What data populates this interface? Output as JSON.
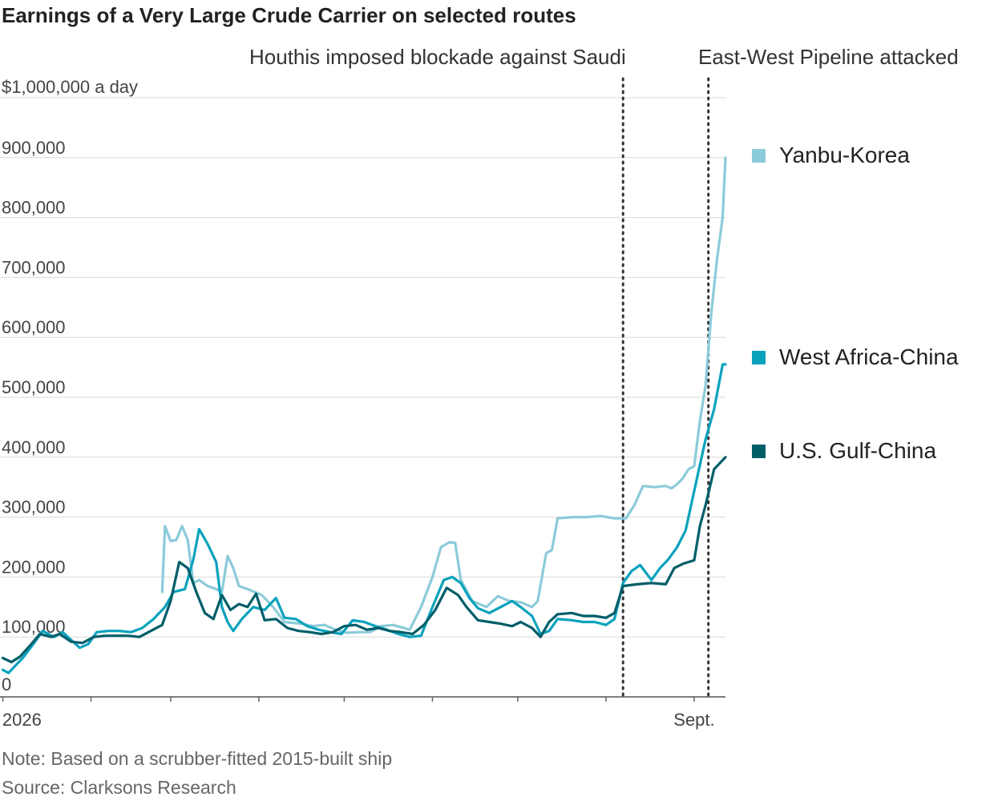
{
  "title": "Earnings of a Very Large Crude Carrier on selected routes",
  "note": "Note: Based on a scrubber-fitted 2015-built ship",
  "source": "Source: Clarksons Research",
  "annotations": [
    {
      "label": "Houthis imposed blockade against Saudi",
      "date": "2026-08-07"
    },
    {
      "label": "East-West Pipeline attacked",
      "date": "2026-09-06"
    }
  ],
  "chart_data": {
    "type": "line",
    "title": "Earnings of a Very Large Crude Carrier on selected routes",
    "ylabel": "$1,000,000 a day",
    "ylim": [
      0,
      1000000
    ],
    "xlim": [
      "2025-12-31",
      "2026-09-12"
    ],
    "y_ticks": [
      {
        "value": 0,
        "label": "0"
      },
      {
        "value": 100000,
        "label": "100,000"
      },
      {
        "value": 200000,
        "label": "200,000"
      },
      {
        "value": 300000,
        "label": "300,000"
      },
      {
        "value": 400000,
        "label": "400,000"
      },
      {
        "value": 500000,
        "label": "500,000"
      },
      {
        "value": 600000,
        "label": "600,000"
      },
      {
        "value": 700000,
        "label": "700,000"
      },
      {
        "value": 800000,
        "label": "800,000"
      },
      {
        "value": 900000,
        "label": "900,000"
      },
      {
        "value": 1000000,
        "label": "$1,000,000 a day"
      }
    ],
    "x_tick_labels": [
      {
        "date": "2026-01-01",
        "label": "Jan. 2026"
      },
      {
        "date": "2026-09-01",
        "label": "Sept."
      }
    ],
    "month_ticks": [
      "2026-02-01",
      "2026-03-01",
      "2026-04-01",
      "2026-05-01",
      "2026-06-01",
      "2026-07-01",
      "2026-08-01",
      "2026-09-01"
    ],
    "grid": true,
    "legend_position": "right",
    "series": [
      {
        "name": "Yanbu-Korea",
        "color": "#8ccbd9",
        "points": [
          [
            "2026-02-26",
            175000
          ],
          [
            "2026-02-27",
            285000
          ],
          [
            "2026-03-01",
            260000
          ],
          [
            "2026-03-03",
            262000
          ],
          [
            "2026-03-05",
            285000
          ],
          [
            "2026-03-07",
            262000
          ],
          [
            "2026-03-09",
            190000
          ],
          [
            "2026-03-11",
            195000
          ],
          [
            "2026-03-14",
            185000
          ],
          [
            "2026-03-17",
            180000
          ],
          [
            "2026-03-19",
            175000
          ],
          [
            "2026-03-21",
            235000
          ],
          [
            "2026-03-23",
            215000
          ],
          [
            "2026-03-25",
            185000
          ],
          [
            "2026-03-28",
            180000
          ],
          [
            "2026-04-02",
            170000
          ],
          [
            "2026-04-06",
            150000
          ],
          [
            "2026-04-10",
            125000
          ],
          [
            "2026-04-16",
            122000
          ],
          [
            "2026-04-20",
            118000
          ],
          [
            "2026-04-24",
            120000
          ],
          [
            "2026-04-28",
            112000
          ],
          [
            "2026-05-02",
            107000
          ],
          [
            "2026-05-06",
            108000
          ],
          [
            "2026-05-10",
            108000
          ],
          [
            "2026-05-14",
            118000
          ],
          [
            "2026-05-18",
            120000
          ],
          [
            "2026-05-22",
            115000
          ],
          [
            "2026-05-24",
            112000
          ],
          [
            "2026-05-28",
            150000
          ],
          [
            "2026-06-01",
            200000
          ],
          [
            "2026-06-04",
            250000
          ],
          [
            "2026-06-07",
            258000
          ],
          [
            "2026-06-09",
            257000
          ],
          [
            "2026-06-11",
            195000
          ],
          [
            "2026-06-15",
            160000
          ],
          [
            "2026-06-20",
            150000
          ],
          [
            "2026-06-24",
            168000
          ],
          [
            "2026-06-28",
            160000
          ],
          [
            "2026-07-02",
            158000
          ],
          [
            "2026-07-06",
            150000
          ],
          [
            "2026-07-08",
            160000
          ],
          [
            "2026-07-11",
            240000
          ],
          [
            "2026-07-13",
            245000
          ],
          [
            "2026-07-15",
            298000
          ],
          [
            "2026-07-20",
            300000
          ],
          [
            "2026-07-25",
            300000
          ],
          [
            "2026-07-30",
            302000
          ],
          [
            "2026-08-04",
            298000
          ],
          [
            "2026-08-08",
            298000
          ],
          [
            "2026-08-11",
            320000
          ],
          [
            "2026-08-14",
            352000
          ],
          [
            "2026-08-18",
            350000
          ],
          [
            "2026-08-22",
            352000
          ],
          [
            "2026-08-24",
            348000
          ],
          [
            "2026-08-26",
            355000
          ],
          [
            "2026-08-28",
            365000
          ],
          [
            "2026-08-30",
            380000
          ],
          [
            "2026-09-01",
            385000
          ],
          [
            "2026-09-03",
            460000
          ],
          [
            "2026-09-05",
            520000
          ],
          [
            "2026-09-07",
            640000
          ],
          [
            "2026-09-09",
            730000
          ],
          [
            "2026-09-11",
            800000
          ],
          [
            "2026-09-12",
            900000
          ]
        ]
      },
      {
        "name": "West Africa-China",
        "color": "#0aa2bd",
        "points": [
          [
            "2026-01-01",
            45000
          ],
          [
            "2026-01-03",
            40000
          ],
          [
            "2026-01-05",
            50000
          ],
          [
            "2026-01-08",
            65000
          ],
          [
            "2026-01-12",
            90000
          ],
          [
            "2026-01-15",
            110000
          ],
          [
            "2026-01-19",
            100000
          ],
          [
            "2026-01-22",
            108000
          ],
          [
            "2026-01-25",
            95000
          ],
          [
            "2026-01-28",
            82000
          ],
          [
            "2026-01-31",
            88000
          ],
          [
            "2026-02-03",
            108000
          ],
          [
            "2026-02-07",
            110000
          ],
          [
            "2026-02-11",
            110000
          ],
          [
            "2026-02-15",
            108000
          ],
          [
            "2026-02-19",
            115000
          ],
          [
            "2026-02-23",
            130000
          ],
          [
            "2026-02-27",
            150000
          ],
          [
            "2026-03-02",
            175000
          ],
          [
            "2026-03-06",
            180000
          ],
          [
            "2026-03-09",
            230000
          ],
          [
            "2026-03-11",
            280000
          ],
          [
            "2026-03-14",
            255000
          ],
          [
            "2026-03-17",
            225000
          ],
          [
            "2026-03-19",
            150000
          ],
          [
            "2026-03-21",
            125000
          ],
          [
            "2026-03-23",
            110000
          ],
          [
            "2026-03-26",
            130000
          ],
          [
            "2026-03-30",
            150000
          ],
          [
            "2026-04-03",
            145000
          ],
          [
            "2026-04-07",
            165000
          ],
          [
            "2026-04-10",
            132000
          ],
          [
            "2026-04-14",
            130000
          ],
          [
            "2026-04-18",
            118000
          ],
          [
            "2026-04-22",
            112000
          ],
          [
            "2026-04-26",
            108000
          ],
          [
            "2026-04-30",
            105000
          ],
          [
            "2026-05-04",
            128000
          ],
          [
            "2026-05-08",
            125000
          ],
          [
            "2026-05-12",
            118000
          ],
          [
            "2026-05-16",
            112000
          ],
          [
            "2026-05-20",
            105000
          ],
          [
            "2026-05-24",
            100000
          ],
          [
            "2026-05-28",
            102000
          ],
          [
            "2026-06-01",
            150000
          ],
          [
            "2026-06-05",
            195000
          ],
          [
            "2026-06-08",
            200000
          ],
          [
            "2026-06-11",
            190000
          ],
          [
            "2026-06-14",
            165000
          ],
          [
            "2026-06-17",
            148000
          ],
          [
            "2026-06-21",
            140000
          ],
          [
            "2026-06-25",
            150000
          ],
          [
            "2026-06-29",
            160000
          ],
          [
            "2026-07-02",
            150000
          ],
          [
            "2026-07-06",
            135000
          ],
          [
            "2026-07-09",
            105000
          ],
          [
            "2026-07-12",
            110000
          ],
          [
            "2026-07-15",
            130000
          ],
          [
            "2026-07-20",
            128000
          ],
          [
            "2026-07-24",
            125000
          ],
          [
            "2026-07-28",
            125000
          ],
          [
            "2026-08-01",
            120000
          ],
          [
            "2026-08-04",
            130000
          ],
          [
            "2026-08-07",
            190000
          ],
          [
            "2026-08-10",
            210000
          ],
          [
            "2026-08-13",
            220000
          ],
          [
            "2026-08-17",
            195000
          ],
          [
            "2026-08-20",
            215000
          ],
          [
            "2026-08-23",
            230000
          ],
          [
            "2026-08-26",
            250000
          ],
          [
            "2026-08-29",
            278000
          ],
          [
            "2026-09-02",
            365000
          ],
          [
            "2026-09-05",
            430000
          ],
          [
            "2026-09-08",
            480000
          ],
          [
            "2026-09-11",
            555000
          ],
          [
            "2026-09-12",
            555000
          ]
        ]
      },
      {
        "name": "U.S. Gulf-China",
        "color": "#005e69",
        "points": [
          [
            "2026-01-01",
            65000
          ],
          [
            "2026-01-04",
            58000
          ],
          [
            "2026-01-07",
            67000
          ],
          [
            "2026-01-11",
            88000
          ],
          [
            "2026-01-14",
            105000
          ],
          [
            "2026-01-18",
            100000
          ],
          [
            "2026-01-21",
            105000
          ],
          [
            "2026-01-25",
            92000
          ],
          [
            "2026-01-29",
            90000
          ],
          [
            "2026-02-02",
            100000
          ],
          [
            "2026-02-06",
            102000
          ],
          [
            "2026-02-10",
            102000
          ],
          [
            "2026-02-14",
            102000
          ],
          [
            "2026-02-18",
            100000
          ],
          [
            "2026-02-22",
            110000
          ],
          [
            "2026-02-26",
            120000
          ],
          [
            "2026-03-01",
            160000
          ],
          [
            "2026-03-04",
            225000
          ],
          [
            "2026-03-07",
            215000
          ],
          [
            "2026-03-10",
            175000
          ],
          [
            "2026-03-13",
            140000
          ],
          [
            "2026-03-16",
            130000
          ],
          [
            "2026-03-19",
            170000
          ],
          [
            "2026-03-22",
            145000
          ],
          [
            "2026-03-25",
            155000
          ],
          [
            "2026-03-28",
            150000
          ],
          [
            "2026-03-31",
            172000
          ],
          [
            "2026-04-03",
            128000
          ],
          [
            "2026-04-07",
            130000
          ],
          [
            "2026-04-11",
            115000
          ],
          [
            "2026-04-15",
            110000
          ],
          [
            "2026-04-19",
            108000
          ],
          [
            "2026-04-23",
            105000
          ],
          [
            "2026-04-27",
            108000
          ],
          [
            "2026-05-01",
            118000
          ],
          [
            "2026-05-05",
            120000
          ],
          [
            "2026-05-09",
            112000
          ],
          [
            "2026-05-13",
            115000
          ],
          [
            "2026-05-17",
            110000
          ],
          [
            "2026-05-21",
            108000
          ],
          [
            "2026-05-25",
            105000
          ],
          [
            "2026-05-29",
            120000
          ],
          [
            "2026-06-02",
            145000
          ],
          [
            "2026-06-06",
            182000
          ],
          [
            "2026-06-10",
            170000
          ],
          [
            "2026-06-13",
            150000
          ],
          [
            "2026-06-17",
            128000
          ],
          [
            "2026-06-21",
            125000
          ],
          [
            "2026-06-25",
            122000
          ],
          [
            "2026-06-29",
            118000
          ],
          [
            "2026-07-02",
            125000
          ],
          [
            "2026-07-06",
            115000
          ],
          [
            "2026-07-09",
            100000
          ],
          [
            "2026-07-12",
            125000
          ],
          [
            "2026-07-15",
            138000
          ],
          [
            "2026-07-20",
            140000
          ],
          [
            "2026-07-24",
            135000
          ],
          [
            "2026-07-28",
            135000
          ],
          [
            "2026-08-01",
            132000
          ],
          [
            "2026-08-04",
            140000
          ],
          [
            "2026-08-07",
            185000
          ],
          [
            "2026-08-12",
            188000
          ],
          [
            "2026-08-17",
            190000
          ],
          [
            "2026-08-22",
            188000
          ],
          [
            "2026-08-25",
            215000
          ],
          [
            "2026-08-28",
            222000
          ],
          [
            "2026-09-01",
            228000
          ],
          [
            "2026-09-03",
            285000
          ],
          [
            "2026-09-05",
            320000
          ],
          [
            "2026-09-08",
            380000
          ],
          [
            "2026-09-11",
            395000
          ],
          [
            "2026-09-12",
            400000
          ]
        ]
      }
    ]
  }
}
